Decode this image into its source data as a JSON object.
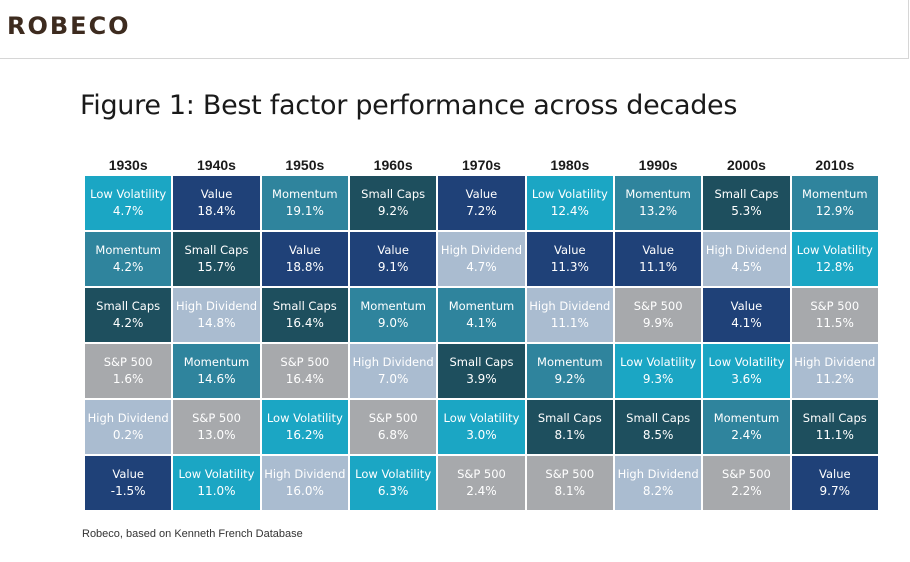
{
  "header": {
    "logo": "ROBECO"
  },
  "title": "Figure 1: Best factor performance across decades",
  "source": "Robeco, based on Kenneth French Database",
  "colors": {
    "Low Volatility": "#1ba6c4",
    "Value": "#1f4178",
    "Momentum": "#2f849d",
    "Small Caps": "#1e4f5e",
    "High Dividend": "#aabcd0",
    "S&P 500": "#a7a9ac"
  },
  "chart_data": {
    "type": "table",
    "title": "Figure 1: Best factor performance across decades",
    "columns": [
      "1930s",
      "1940s",
      "1950s",
      "1960s",
      "1970s",
      "1980s",
      "1990s",
      "2000s",
      "2010s"
    ],
    "rows": [
      [
        {
          "factor": "Low Volatility",
          "value": "4.7%"
        },
        {
          "factor": "Value",
          "value": "18.4%"
        },
        {
          "factor": "Momentum",
          "value": "19.1%"
        },
        {
          "factor": "Small Caps",
          "value": "9.2%"
        },
        {
          "factor": "Value",
          "value": "7.2%"
        },
        {
          "factor": "Low Volatility",
          "value": "12.4%"
        },
        {
          "factor": "Momentum",
          "value": "13.2%"
        },
        {
          "factor": "Small Caps",
          "value": "5.3%"
        },
        {
          "factor": "Momentum",
          "value": "12.9%"
        }
      ],
      [
        {
          "factor": "Momentum",
          "value": "4.2%"
        },
        {
          "factor": "Small Caps",
          "value": "15.7%"
        },
        {
          "factor": "Value",
          "value": "18.8%"
        },
        {
          "factor": "Value",
          "value": "9.1%"
        },
        {
          "factor": "High Dividend",
          "value": "4.7%"
        },
        {
          "factor": "Value",
          "value": "11.3%"
        },
        {
          "factor": "Value",
          "value": "11.1%"
        },
        {
          "factor": "High Dividend",
          "value": "4.5%"
        },
        {
          "factor": "Low Volatility",
          "value": "12.8%"
        }
      ],
      [
        {
          "factor": "Small Caps",
          "value": "4.2%"
        },
        {
          "factor": "High Dividend",
          "value": "14.8%"
        },
        {
          "factor": "Small Caps",
          "value": "16.4%"
        },
        {
          "factor": "Momentum",
          "value": "9.0%"
        },
        {
          "factor": "Momentum",
          "value": "4.1%"
        },
        {
          "factor": "High Dividend",
          "value": "11.1%"
        },
        {
          "factor": "S&P 500",
          "value": "9.9%"
        },
        {
          "factor": "Value",
          "value": "4.1%"
        },
        {
          "factor": "S&P 500",
          "value": "11.5%"
        }
      ],
      [
        {
          "factor": "S&P 500",
          "value": "1.6%"
        },
        {
          "factor": "Momentum",
          "value": "14.6%"
        },
        {
          "factor": "S&P 500",
          "value": "16.4%"
        },
        {
          "factor": "High Dividend",
          "value": "7.0%"
        },
        {
          "factor": "Small Caps",
          "value": "3.9%"
        },
        {
          "factor": "Momentum",
          "value": "9.2%"
        },
        {
          "factor": "Low Volatility",
          "value": "9.3%"
        },
        {
          "factor": "Low Volatility",
          "value": "3.6%"
        },
        {
          "factor": "High Dividend",
          "value": "11.2%"
        }
      ],
      [
        {
          "factor": "High Dividend",
          "value": "0.2%"
        },
        {
          "factor": "S&P 500",
          "value": "13.0%"
        },
        {
          "factor": "Low Volatility",
          "value": "16.2%"
        },
        {
          "factor": "S&P 500",
          "value": "6.8%"
        },
        {
          "factor": "Low Volatility",
          "value": "3.0%"
        },
        {
          "factor": "Small Caps",
          "value": "8.1%"
        },
        {
          "factor": "Small Caps",
          "value": "8.5%"
        },
        {
          "factor": "Momentum",
          "value": "2.4%"
        },
        {
          "factor": "Small Caps",
          "value": "11.1%"
        }
      ],
      [
        {
          "factor": "Value",
          "value": "-1.5%"
        },
        {
          "factor": "Low Volatility",
          "value": "11.0%"
        },
        {
          "factor": "High Dividend",
          "value": "16.0%"
        },
        {
          "factor": "Low Volatility",
          "value": "6.3%"
        },
        {
          "factor": "S&P 500",
          "value": "2.4%"
        },
        {
          "factor": "S&P 500",
          "value": "8.1%"
        },
        {
          "factor": "High Dividend",
          "value": "8.2%"
        },
        {
          "factor": "S&P 500",
          "value": "2.2%"
        },
        {
          "factor": "Value",
          "value": "9.7%"
        }
      ]
    ]
  }
}
